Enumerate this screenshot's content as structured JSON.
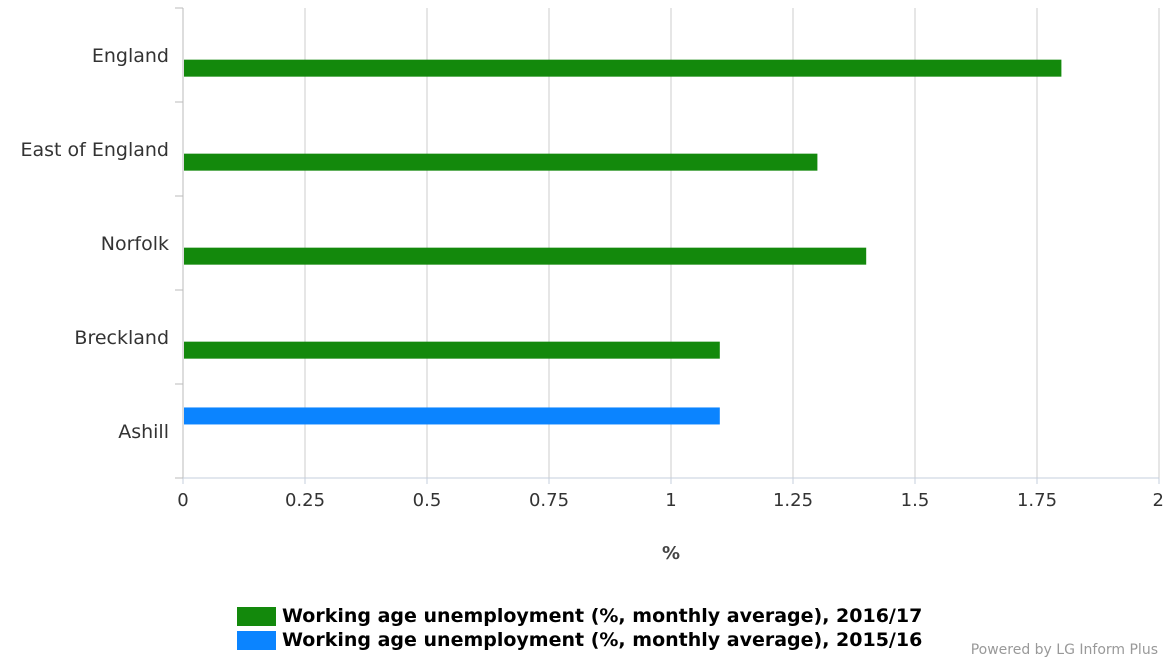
{
  "chart_data": {
    "type": "bar",
    "orientation": "horizontal",
    "categories": [
      "England",
      "East of England",
      "Norfolk",
      "Breckland",
      "Ashill"
    ],
    "series": [
      {
        "name": "Working age unemployment (%, monthly average), 2016/17",
        "color": "#13890c",
        "values": [
          1.8,
          1.3,
          1.4,
          1.1,
          null
        ]
      },
      {
        "name": "Working age unemployment (%, monthly average), 2015/16",
        "color": "#0b84ff",
        "values": [
          null,
          null,
          null,
          null,
          1.1
        ]
      }
    ],
    "xlabel": "%",
    "ylabel": "",
    "xlim": [
      0,
      2
    ],
    "x_ticks": [
      "0",
      "0.25",
      "0.5",
      "0.75",
      "1",
      "1.25",
      "1.5",
      "1.75",
      "2"
    ],
    "grid": true,
    "legend_position": "bottom"
  },
  "credit": "Powered by LG Inform Plus"
}
